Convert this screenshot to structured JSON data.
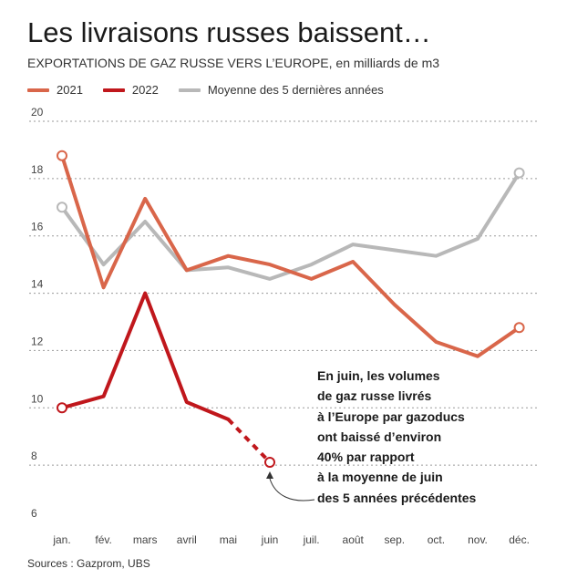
{
  "title": "Les livraisons russes baissent…",
  "subtitle": "EXPORTATIONS DE GAZ RUSSE VERS L’EUROPE, en milliards de m3",
  "source": "Sources : Gazprom, UBS",
  "annotation": "En juin, les volumes\nde gaz russe livrés\nà l’Europe par gazoducs\nont baissé d’environ\n40% par rapport\nà la moyenne de juin\ndes 5 années précédentes",
  "colors": {
    "s2021": "#d9664a",
    "s2022": "#c0171c",
    "avg": "#b8b8b8",
    "grid": "#9a9a9a"
  },
  "chart_data": {
    "type": "line",
    "title": "Les livraisons russes baissent…",
    "subtitle": "EXPORTATIONS DE GAZ RUSSE VERS L’EUROPE, en milliards de m3",
    "ylabel": "",
    "xlabel": "",
    "categories": [
      "jan.",
      "fév.",
      "mars",
      "avril",
      "mai",
      "juin",
      "juil.",
      "août",
      "sep.",
      "oct.",
      "nov.",
      "déc."
    ],
    "ylim": [
      6,
      20
    ],
    "yticks": [
      6,
      8,
      10,
      12,
      14,
      16,
      18,
      20
    ],
    "grid": "horizontal dashed",
    "legend_position": "top-left",
    "series": [
      {
        "name": "2021",
        "color": "#d9664a",
        "values": [
          18.8,
          14.2,
          17.3,
          14.8,
          15.3,
          15.0,
          14.5,
          15.1,
          13.6,
          12.3,
          11.8,
          12.8
        ]
      },
      {
        "name": "2022",
        "color": "#c0171c",
        "values": [
          10.0,
          10.4,
          14.0,
          10.2,
          9.6,
          8.1,
          null,
          null,
          null,
          null,
          null,
          null
        ],
        "dashed_from_index": 4
      },
      {
        "name": "Moyenne des 5 dernières années",
        "color": "#b8b8b8",
        "values": [
          17.0,
          15.0,
          16.5,
          14.8,
          14.9,
          14.5,
          15.0,
          15.7,
          15.5,
          15.3,
          15.9,
          18.2
        ]
      }
    ]
  }
}
